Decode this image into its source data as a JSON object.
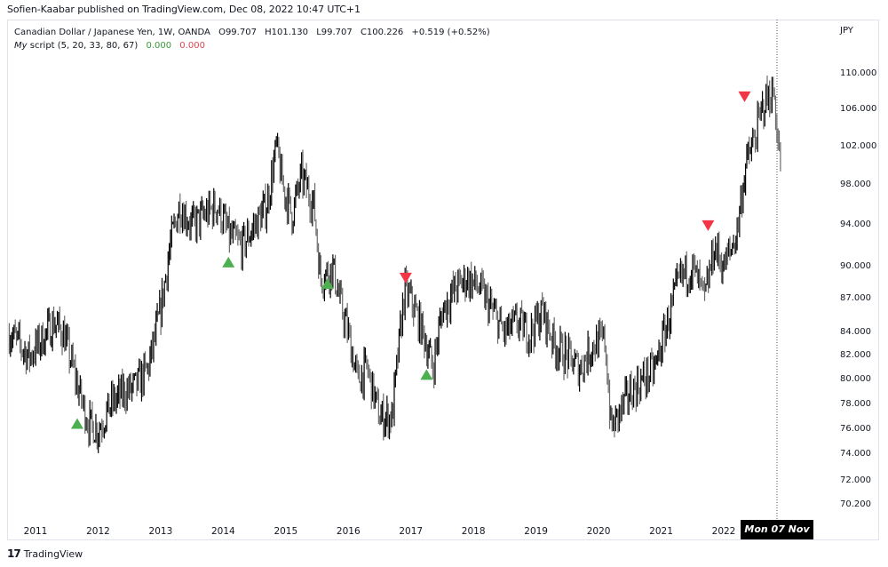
{
  "header": {
    "publisher_line": "Sofien-Kaabar published on TradingView.com, Dec 08, 2022 10:47 UTC+1"
  },
  "legend": {
    "symbol": "Canadian Dollar / Japanese Yen, 1W, OANDA",
    "open": "O99.707",
    "high": "H101.130",
    "low": "L99.707",
    "close": "C100.226",
    "change": "+0.519 (+0.52%)",
    "script_prefix": "My",
    "script_name": "script (5, 20, 33, 80, 67)",
    "script_value_1": "0.000",
    "script_value_2": "0.000",
    "script_value_1_color": "#3a9a3a",
    "script_value_2_color": "#e0454f"
  },
  "price_axis": {
    "currency": "JPY",
    "ticks": [
      "110.000",
      "106.000",
      "102.000",
      "98.000",
      "94.000",
      "90.000",
      "87.000",
      "84.000",
      "82.000",
      "80.000",
      "78.000",
      "76.000",
      "74.000",
      "72.000",
      "70.200"
    ]
  },
  "time_axis": {
    "ticks": [
      "2011",
      "2012",
      "2013",
      "2014",
      "2015",
      "2016",
      "2017",
      "2018",
      "2019",
      "2020",
      "2021",
      "2022"
    ],
    "crosshair_label": "Mon 07 Nov '22"
  },
  "footer": {
    "logo_glyph": "17",
    "brand": "TradingView"
  },
  "colors": {
    "bar_up": "#000000",
    "bar_down": "#6b6b6b",
    "buy_signal": "#4caf50",
    "sell_signal": "#f23645",
    "crosshair": "#555555"
  },
  "chart_data": {
    "type": "ohlc-bar",
    "title": "Canadian Dollar / Japanese Yen, 1W, OANDA",
    "xlabel": "",
    "ylabel": "JPY",
    "ylim": [
      69.5,
      112
    ],
    "x_range": [
      "2010-08",
      "2022-12"
    ],
    "grid": false,
    "legend_position": "top-left",
    "last_bar": {
      "open": 99.707,
      "high": 101.13,
      "low": 99.707,
      "close": 100.226,
      "change": 0.519,
      "change_pct": 0.52
    },
    "price_path": {
      "x": [
        2010.6,
        2010.9,
        2011.1,
        2011.3,
        2011.45,
        2011.6,
        2011.7,
        2011.85,
        2012.0,
        2012.2,
        2012.4,
        2012.6,
        2012.8,
        2013.0,
        2013.15,
        2013.3,
        2013.5,
        2013.7,
        2013.9,
        2014.1,
        2014.3,
        2014.5,
        2014.7,
        2014.85,
        2014.95,
        2015.1,
        2015.25,
        2015.45,
        2015.55,
        2015.75,
        2015.9,
        2016.0,
        2016.15,
        2016.3,
        2016.5,
        2016.7,
        2016.9,
        2017.0,
        2017.2,
        2017.35,
        2017.5,
        2017.7,
        2017.9,
        2018.1,
        2018.3,
        2018.5,
        2018.7,
        2018.9,
        2019.1,
        2019.3,
        2019.5,
        2019.7,
        2019.9,
        2020.1,
        2020.2,
        2020.3,
        2020.5,
        2020.7,
        2020.9,
        2021.1,
        2021.3,
        2021.5,
        2021.7,
        2021.85,
        2022.0,
        2022.2,
        2022.35,
        2022.5,
        2022.65,
        2022.8,
        2022.9
      ],
      "close": [
        84,
        82,
        83.5,
        85,
        84,
        81,
        79,
        76.5,
        76,
        78,
        79,
        79.5,
        81,
        86,
        92,
        96,
        94,
        95,
        96,
        93,
        92,
        94,
        96,
        102,
        98,
        95,
        99,
        96,
        89,
        90,
        86,
        84,
        80,
        81,
        77,
        77,
        88,
        87,
        84,
        81,
        86,
        88,
        89,
        88,
        86,
        84,
        85,
        84,
        86,
        83,
        82,
        81,
        83,
        83.5,
        76,
        77,
        79,
        80,
        81,
        85,
        89,
        90,
        87,
        92,
        90,
        93,
        100,
        103,
        107,
        108,
        100.2
      ]
    },
    "signals": [
      {
        "type": "buy",
        "date": "2011-09",
        "price": 76.5
      },
      {
        "type": "buy",
        "date": "2014-02",
        "price": 90.5
      },
      {
        "type": "buy",
        "date": "2015-09",
        "price": 88.5
      },
      {
        "type": "sell",
        "date": "2016-12",
        "price": 89
      },
      {
        "type": "buy",
        "date": "2017-04",
        "price": 80.5
      },
      {
        "type": "sell",
        "date": "2021-10",
        "price": 94
      },
      {
        "type": "sell",
        "date": "2022-05",
        "price": 107.5
      }
    ]
  }
}
